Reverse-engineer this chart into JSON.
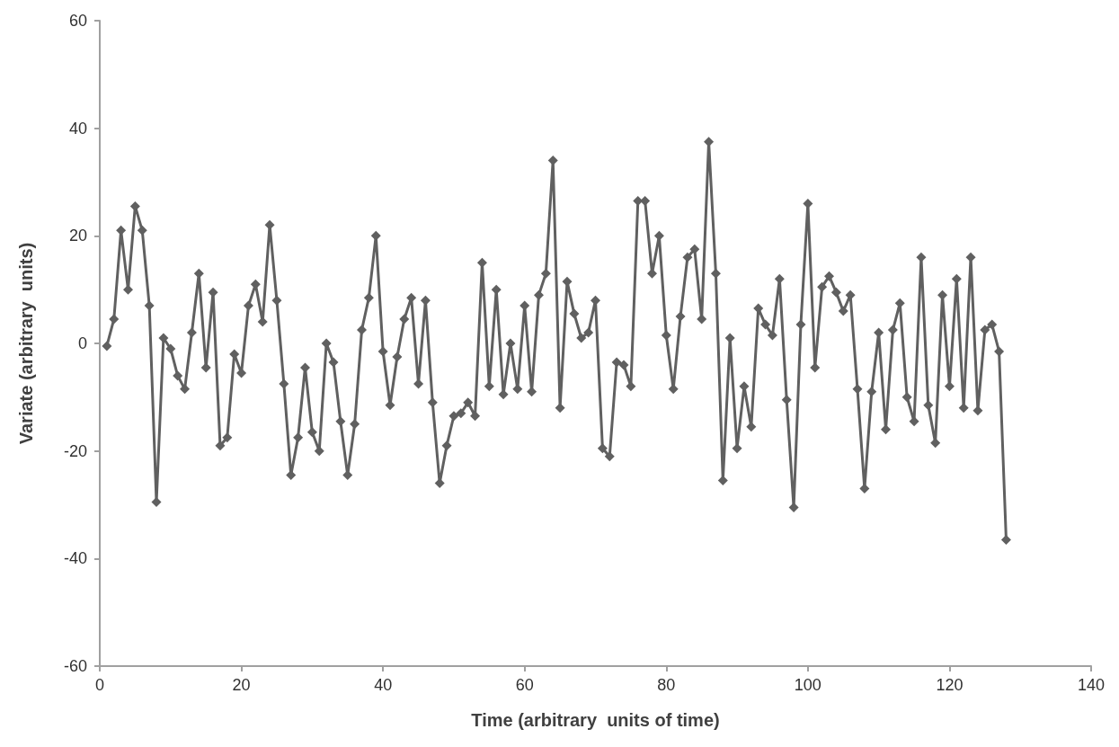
{
  "chart_data": {
    "type": "line",
    "xlabel": "Time (arbitrary  units of time)",
    "ylabel": "Variate (arbitrary  units)",
    "x": [
      1,
      2,
      3,
      4,
      5,
      6,
      7,
      8,
      9,
      10,
      11,
      12,
      13,
      14,
      15,
      16,
      17,
      18,
      19,
      20,
      21,
      22,
      23,
      24,
      25,
      26,
      27,
      28,
      29,
      30,
      31,
      32,
      33,
      34,
      35,
      36,
      37,
      38,
      39,
      40,
      41,
      42,
      43,
      44,
      45,
      46,
      47,
      48,
      49,
      50,
      51,
      52,
      53,
      54,
      55,
      56,
      57,
      58,
      59,
      60,
      61,
      62,
      63,
      64,
      65,
      66,
      67,
      68,
      69,
      70,
      71,
      72,
      73,
      74,
      75,
      76,
      77,
      78,
      79,
      80,
      81,
      82,
      83,
      84,
      85,
      86,
      87,
      88,
      89,
      90,
      91,
      92,
      93,
      94,
      95,
      96,
      97,
      98,
      99,
      100,
      101,
      102,
      103,
      104,
      105,
      106,
      107,
      108,
      109,
      110,
      111,
      112,
      113,
      114,
      115,
      116,
      117,
      118,
      119,
      120,
      121,
      122,
      123,
      124,
      125,
      126,
      127,
      128
    ],
    "series": [
      {
        "color": "#606060",
        "values": [
          -0.5,
          4.5,
          21,
          10,
          25.5,
          21,
          7,
          -29.5,
          1,
          -1,
          -6,
          -8.5,
          2,
          13,
          -4.5,
          9.5,
          -19,
          -17.5,
          -2,
          -5.5,
          7,
          11,
          4,
          22,
          8,
          -7.5,
          -24.5,
          -17.5,
          -4.5,
          -16.5,
          -20,
          0,
          -3.5,
          -14.5,
          -24.5,
          -15,
          2.5,
          8.5,
          20,
          -1.5,
          -11.5,
          -2.5,
          4.5,
          8.5,
          -7.5,
          8,
          -11,
          -26,
          -19,
          -13.5,
          -13,
          -11,
          -13.5,
          15,
          -8,
          10,
          -9.5,
          0,
          -8.5,
          7,
          -9,
          9,
          13,
          34,
          -12,
          11.5,
          5.5,
          1,
          2,
          8,
          -19.5,
          -21,
          -3.5,
          -4,
          -8,
          26.5,
          26.5,
          13,
          20,
          1.5,
          -8.5,
          5,
          16,
          17.5,
          4.5,
          37.5,
          13,
          -25.5,
          1,
          -19.5,
          -8,
          -15.5,
          6.5,
          3.5,
          1.5,
          12,
          -10.5,
          -30.5,
          3.5,
          26,
          -4.5,
          10.5,
          12.5,
          9.5,
          6,
          9,
          -8.5,
          -27,
          -9,
          2,
          -16,
          2.5,
          7.5,
          -10,
          -14.5,
          16,
          -11.5,
          -18.5,
          9,
          -8,
          12,
          -12,
          16,
          -12.5,
          2.5,
          3.5,
          -1.5,
          -36.5
        ]
      }
    ],
    "xlim": [
      0,
      140
    ],
    "xticks": [
      0,
      20,
      40,
      60,
      80,
      100,
      120,
      140
    ],
    "ylim": [
      -60,
      60
    ],
    "yticks": [
      -60,
      -40,
      -20,
      0,
      20,
      40,
      60
    ],
    "grid": false,
    "marker": "diamond",
    "line_style": "solid"
  }
}
